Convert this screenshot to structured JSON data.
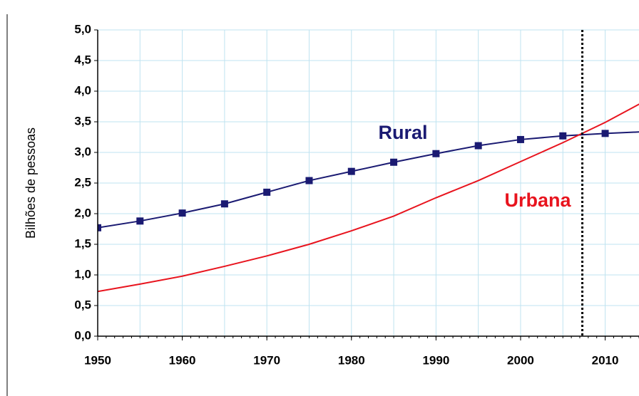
{
  "chart_data": {
    "type": "line",
    "y_label": "Bilhões de pessoas",
    "x": [
      1950,
      1955,
      1960,
      1965,
      1970,
      1975,
      1980,
      1985,
      1990,
      1995,
      2000,
      2005,
      2010,
      2015
    ],
    "series": [
      {
        "name": "Rural",
        "color": "#1a1a72",
        "marker": "square",
        "values": [
          1.77,
          1.88,
          2.01,
          2.16,
          2.35,
          2.54,
          2.69,
          2.84,
          2.98,
          3.11,
          3.21,
          3.27,
          3.31,
          3.34
        ]
      },
      {
        "name": "Urbana",
        "color": "#e8141e",
        "marker": "none",
        "values": [
          0.73,
          0.85,
          0.98,
          1.14,
          1.31,
          1.5,
          1.72,
          1.96,
          2.26,
          2.54,
          2.85,
          3.16,
          3.49,
          3.86
        ]
      }
    ],
    "xlim": [
      1950,
      2014
    ],
    "xticks": [
      1950,
      1960,
      1970,
      1980,
      1990,
      2000,
      2010
    ],
    "ylim": [
      0,
      5
    ],
    "yticks": [
      {
        "value": 0,
        "label": "0,0"
      },
      {
        "value": 0.5,
        "label": "0,5"
      },
      {
        "value": 1,
        "label": "1,0"
      },
      {
        "value": 1.5,
        "label": "1,5"
      },
      {
        "value": 2,
        "label": "2,0"
      },
      {
        "value": 2.5,
        "label": "2,5"
      },
      {
        "value": 3,
        "label": "3,0"
      },
      {
        "value": 3.5,
        "label": "3,5"
      },
      {
        "value": 4,
        "label": "4,0"
      },
      {
        "value": 4.5,
        "label": "4,5"
      },
      {
        "value": 5,
        "label": "5,0"
      }
    ],
    "vline": 2007.3,
    "grid": true
  }
}
